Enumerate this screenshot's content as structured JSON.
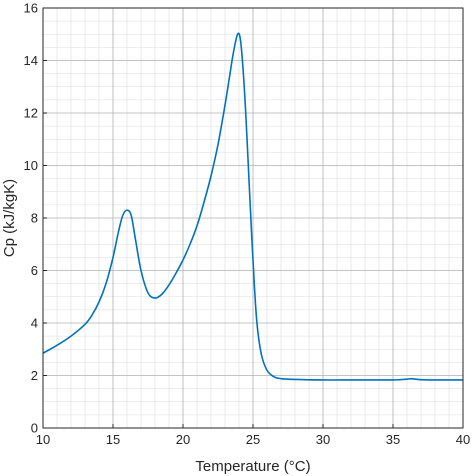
{
  "chart_data": {
    "type": "line",
    "title": "",
    "xlabel": "Temperature (°C)",
    "ylabel": "Cp (kJ/kgK)",
    "xlim": [
      10,
      40
    ],
    "ylim": [
      0,
      16
    ],
    "x_ticks": [
      10,
      15,
      20,
      25,
      30,
      35,
      40
    ],
    "y_ticks": [
      0,
      2,
      4,
      6,
      8,
      10,
      12,
      14,
      16
    ],
    "grid": true,
    "minor_grid": true,
    "legend": "none",
    "series": [
      {
        "color": "#0072BD",
        "x": [
          10,
          11,
          12,
          13,
          13.5,
          14,
          14.5,
          15,
          15.4,
          15.7,
          16,
          16.3,
          16.6,
          17,
          17.5,
          18,
          18.5,
          19,
          19.5,
          20,
          20.5,
          21,
          21.5,
          22,
          22.5,
          23,
          23.3,
          23.6,
          23.9,
          24.1,
          24.3,
          24.5,
          24.7,
          24.9,
          25.1,
          25.3,
          25.6,
          26,
          26.5,
          27,
          28,
          30,
          32,
          34,
          35,
          35.5,
          36,
          36.3,
          36.6,
          37,
          38,
          39,
          40
        ],
        "y": [
          2.85,
          3.15,
          3.5,
          3.95,
          4.3,
          4.8,
          5.5,
          6.5,
          7.5,
          8.1,
          8.3,
          8.1,
          7.2,
          6.0,
          5.15,
          4.95,
          5.1,
          5.45,
          5.9,
          6.4,
          7.0,
          7.7,
          8.6,
          9.6,
          10.8,
          12.3,
          13.3,
          14.3,
          15.0,
          14.8,
          13.6,
          11.8,
          9.6,
          7.4,
          5.4,
          3.9,
          2.8,
          2.2,
          1.95,
          1.88,
          1.85,
          1.83,
          1.83,
          1.83,
          1.83,
          1.84,
          1.86,
          1.88,
          1.86,
          1.84,
          1.83,
          1.83,
          1.83
        ]
      }
    ]
  }
}
